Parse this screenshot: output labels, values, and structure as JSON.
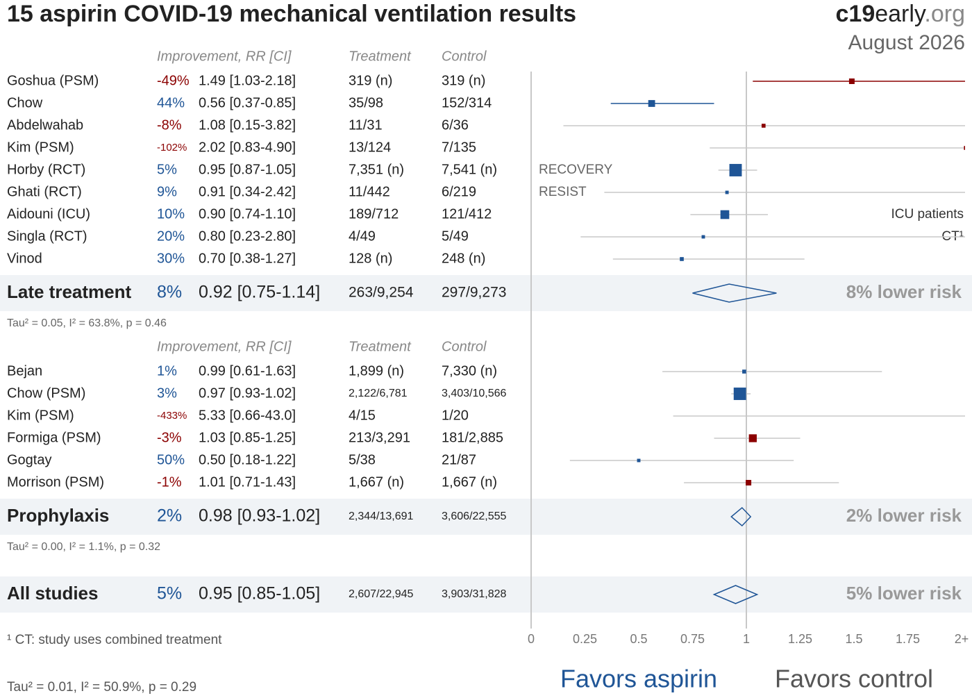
{
  "chart_data": {
    "type": "forest",
    "title": "15 aspirin COVID-19 mechanical ventilation results",
    "brand": [
      "c19",
      "early",
      ".org"
    ],
    "date": "August 2026",
    "columns": [
      "Improvement, RR [CI]",
      "Treatment",
      "Control"
    ],
    "colors": {
      "benefit": "#1f5596",
      "harm": "#8b0000",
      "neutral": "#c8c8c8",
      "band": "#f0f3f6"
    },
    "xlim": [
      0,
      2
    ],
    "xticks": [
      0,
      0.25,
      0.5,
      0.75,
      1,
      1.25,
      1.5,
      1.75,
      {
        "value": 2,
        "label": "2+"
      }
    ],
    "groups": [
      {
        "studies": [
          {
            "name": "Goshua (PSM)",
            "improvement": -49,
            "improvement_label": "-49%",
            "rr": 1.49,
            "ci": [
              1.03,
              2.18
            ],
            "rr_label": "1.49 [1.03-2.18]",
            "treatment": "319 (n)",
            "control": "319 (n)",
            "weight": 4
          },
          {
            "name": "Chow",
            "improvement": 44,
            "improvement_label": "44%",
            "rr": 0.56,
            "ci": [
              0.37,
              0.85
            ],
            "rr_label": "0.56 [0.37-0.85]",
            "treatment": "35/98",
            "control": "152/314",
            "weight": 6
          },
          {
            "name": "Abdelwahab",
            "improvement": -8,
            "improvement_label": "-8%",
            "rr": 1.08,
            "ci": [
              0.15,
              3.82
            ],
            "rr_label": "1.08 [0.15-3.82]",
            "treatment": "11/31",
            "control": "6/36",
            "weight": 2
          },
          {
            "name": "Kim (PSM)",
            "improvement": -102,
            "improvement_label": "-102%",
            "rr": 2.02,
            "ci": [
              0.83,
              4.9
            ],
            "rr_label": "2.02 [0.83-4.90]",
            "treatment": "13/124",
            "control": "7/135",
            "weight": 2
          },
          {
            "name": "Horby (RCT)",
            "improvement": 5,
            "improvement_label": "5%",
            "rr": 0.95,
            "ci": [
              0.87,
              1.05
            ],
            "rr_label": "0.95 [0.87-1.05]",
            "treatment": "7,351 (n)",
            "control": "7,541 (n)",
            "weight": 20,
            "note": "RECOVERY",
            "note_position": "left"
          },
          {
            "name": "Ghati (RCT)",
            "improvement": 9,
            "improvement_label": "9%",
            "rr": 0.91,
            "ci": [
              0.34,
              2.42
            ],
            "rr_label": "0.91 [0.34-2.42]",
            "treatment": "11/442",
            "control": "6/219",
            "weight": 1.5,
            "note": "RESIST",
            "note_position": "left"
          },
          {
            "name": "Aidouni (ICU)",
            "improvement": 10,
            "improvement_label": "10%",
            "rr": 0.9,
            "ci": [
              0.74,
              1.1
            ],
            "rr_label": "0.90 [0.74-1.10]",
            "treatment": "189/712",
            "control": "121/412",
            "weight": 10,
            "note": "ICU patients",
            "note_position": "right"
          },
          {
            "name": "Singla (RCT)",
            "improvement": 20,
            "improvement_label": "20%",
            "rr": 0.8,
            "ci": [
              0.23,
              2.8
            ],
            "rr_label": "0.80 [0.23-2.80]",
            "treatment": "4/49",
            "control": "5/49",
            "weight": 1.5,
            "note": "CT¹",
            "note_position": "right"
          },
          {
            "name": "Vinod",
            "improvement": 30,
            "improvement_label": "30%",
            "rr": 0.7,
            "ci": [
              0.38,
              1.27
            ],
            "rr_label": "0.70 [0.38-1.27]",
            "treatment": "128 (n)",
            "control": "248 (n)",
            "weight": 2
          }
        ],
        "summary": {
          "name": "Late treatment",
          "improvement": 8,
          "improvement_label": "8%",
          "rr": 0.92,
          "ci": [
            0.75,
            1.14
          ],
          "rr_label": "0.92 [0.75-1.14]",
          "treatment": "263/9,254",
          "control": "297/9,273",
          "risk": "8% lower risk"
        },
        "heterogeneity": "Tau² = 0.05, I² = 63.8%, p = 0.46"
      },
      {
        "studies": [
          {
            "name": "Bejan",
            "improvement": 1,
            "improvement_label": "1%",
            "rr": 0.99,
            "ci": [
              0.61,
              1.63
            ],
            "rr_label": "0.99 [0.61-1.63]",
            "treatment": "1,899 (n)",
            "control": "7,330 (n)",
            "weight": 2
          },
          {
            "name": "Chow (PSM)",
            "improvement": 3,
            "improvement_label": "3%",
            "rr": 0.97,
            "ci": [
              0.93,
              1.02
            ],
            "rr_label": "0.97 [0.93-1.02]",
            "treatment": "2,122/6,781",
            "control": "3,403/10,566",
            "weight": 20
          },
          {
            "name": "Kim (PSM)",
            "improvement": -433,
            "improvement_label": "-433%",
            "rr": 5.33,
            "ci": [
              0.66,
              43.0
            ],
            "rr_label": "5.33 [0.66-43.0]",
            "treatment": "4/15",
            "control": "1/20",
            "weight": 1
          },
          {
            "name": "Formiga (PSM)",
            "improvement": -3,
            "improvement_label": "-3%",
            "rr": 1.03,
            "ci": [
              0.85,
              1.25
            ],
            "rr_label": "1.03 [0.85-1.25]",
            "treatment": "213/3,291",
            "control": "181/2,885",
            "weight": 8
          },
          {
            "name": "Gogtay",
            "improvement": 50,
            "improvement_label": "50%",
            "rr": 0.5,
            "ci": [
              0.18,
              1.22
            ],
            "rr_label": "0.50 [0.18-1.22]",
            "treatment": "5/38",
            "control": "21/87",
            "weight": 1.5
          },
          {
            "name": "Morrison (PSM)",
            "improvement": -1,
            "improvement_label": "-1%",
            "rr": 1.01,
            "ci": [
              0.71,
              1.43
            ],
            "rr_label": "1.01 [0.71-1.43]",
            "treatment": "1,667 (n)",
            "control": "1,667 (n)",
            "weight": 4
          }
        ],
        "summary": {
          "name": "Prophylaxis",
          "improvement": 2,
          "improvement_label": "2%",
          "rr": 0.98,
          "ci": [
            0.93,
            1.02
          ],
          "rr_label": "0.98 [0.93-1.02]",
          "treatment": "2,344/13,691",
          "control": "3,606/22,555",
          "risk": "2% lower risk"
        },
        "heterogeneity": "Tau² = 0.00, I² = 1.1%, p = 0.32"
      }
    ],
    "overall": {
      "name": "All studies",
      "improvement": 5,
      "improvement_label": "5%",
      "rr": 0.95,
      "ci": [
        0.85,
        1.05
      ],
      "rr_label": "0.95 [0.85-1.05]",
      "treatment": "2,607/22,945",
      "control": "3,903/31,828",
      "risk": "5% lower risk"
    },
    "overall_heterogeneity": "Tau² = 0.01, I² = 50.9%, p = 0.29",
    "footnote": "¹ CT: study uses combined treatment",
    "favors": [
      "Favors aspirin",
      "Favors control"
    ]
  }
}
